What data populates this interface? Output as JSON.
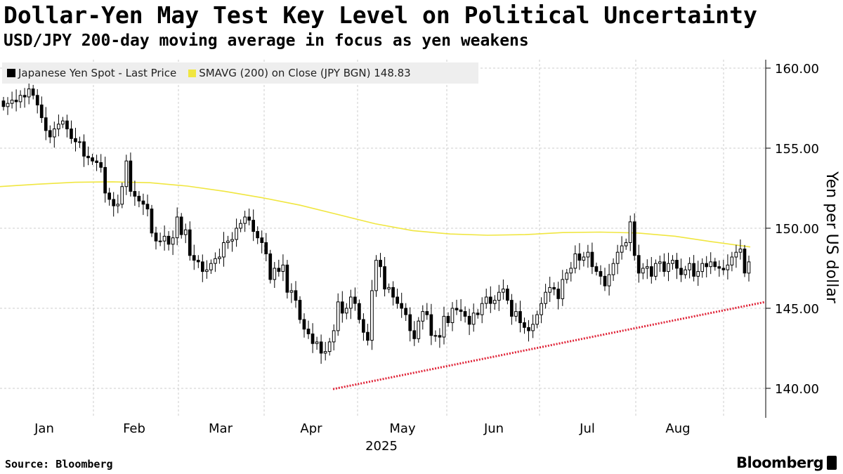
{
  "title": "Dollar-Yen May Test Key Level on Political Uncertainty",
  "subtitle": "USD/JPY 200-day moving average in focus as yen weakens",
  "source": "Source: Bloomberg",
  "brand": "Bloomberg",
  "legend": {
    "series1": "Japanese Yen Spot - Last Price",
    "series2": "SMAVG (200)  on Close (JPY BGN) 148.83"
  },
  "colors": {
    "candle": "#000000",
    "sma": "#f0e640",
    "trendline": "#e0263a",
    "grid": "#cccccc",
    "legend_bg": "#eeeeee"
  },
  "chart_data": {
    "type": "candlestick",
    "ylabel": "Yen per US dollar",
    "ylim": [
      138.0,
      161.0
    ],
    "yticks": [
      "160.00",
      "155.00",
      "150.00",
      "145.00",
      "140.00"
    ],
    "xlabels": [
      "Jan",
      "Feb",
      "Mar",
      "Apr",
      "May",
      "Jun",
      "Jul",
      "Aug"
    ],
    "year_label": "2025",
    "grid": true,
    "legend_placement": "top-left",
    "series": [
      {
        "name": "Japanese Yen Spot - Last Price",
        "kind": "candlestick",
        "close": [
          157.6,
          157.8,
          158.0,
          157.9,
          158.3,
          158.2,
          158.7,
          158.3,
          157.7,
          156.9,
          156.1,
          155.7,
          156.2,
          156.5,
          156.7,
          156.2,
          155.6,
          155.4,
          155.4,
          154.5,
          154.4,
          154.2,
          154.1,
          153.8,
          152.2,
          151.8,
          151.4,
          151.5,
          152.6,
          154.2,
          152.3,
          152.0,
          151.7,
          151.5,
          151.2,
          149.7,
          149.2,
          149.2,
          149.5,
          149.0,
          149.4,
          150.7,
          149.6,
          149.9,
          148.3,
          148.0,
          147.9,
          147.3,
          147.4,
          147.8,
          148.1,
          148.2,
          149.1,
          149.2,
          149.3,
          150.0,
          150.3,
          150.7,
          150.5,
          149.8,
          149.4,
          149.1,
          148.4,
          146.8,
          147.5,
          147.3,
          147.7,
          146.0,
          146.1,
          145.5,
          144.3,
          143.7,
          143.4,
          142.8,
          142.9,
          142.2,
          142.3,
          142.9,
          143.6,
          145.4,
          144.7,
          145.0,
          145.7,
          145.3,
          144.3,
          143.5,
          143.0,
          146.1,
          148.0,
          147.6,
          146.2,
          146.3,
          145.7,
          145.3,
          145.0,
          144.6,
          143.6,
          143.1,
          144.2,
          144.8,
          144.6,
          143.3,
          143.3,
          143.2,
          144.5,
          144.1,
          145.0,
          144.9,
          144.8,
          144.5,
          144.0,
          144.7,
          144.6,
          145.3,
          145.7,
          145.3,
          145.5,
          146.0,
          146.2,
          145.5,
          144.5,
          144.8,
          144.1,
          143.8,
          143.6,
          144.0,
          144.6,
          145.3,
          146.0,
          146.3,
          146.2,
          145.6,
          146.8,
          147.2,
          147.5,
          148.4,
          148.0,
          148.2,
          148.5,
          147.6,
          147.3,
          147.0,
          146.4,
          147.1,
          147.8,
          148.5,
          148.9,
          149.1,
          150.4,
          148.3,
          147.2,
          147.5,
          147.6,
          147.0,
          147.8,
          147.9,
          147.3,
          147.8,
          148.0,
          147.5,
          147.1,
          147.4,
          147.8,
          147.0,
          147.3,
          147.8,
          147.6,
          147.9,
          147.6,
          147.5,
          147.4,
          147.7,
          148.2,
          148.5,
          148.7,
          147.2,
          147.9
        ]
      },
      {
        "name": "SMAVG (200)  on Close (JPY BGN)",
        "kind": "line",
        "last_value": 148.83,
        "values": [
          152.6,
          152.75,
          152.87,
          152.9,
          152.84,
          152.63,
          152.3,
          151.9,
          151.44,
          150.86,
          150.28,
          149.85,
          149.64,
          149.56,
          149.6,
          149.73,
          149.76,
          149.7,
          149.5,
          149.15,
          148.83
        ]
      },
      {
        "name": "Trend line",
        "kind": "line",
        "points": [
          [
            0,
            139.95
          ],
          [
            1,
            145.4
          ]
        ]
      }
    ]
  }
}
